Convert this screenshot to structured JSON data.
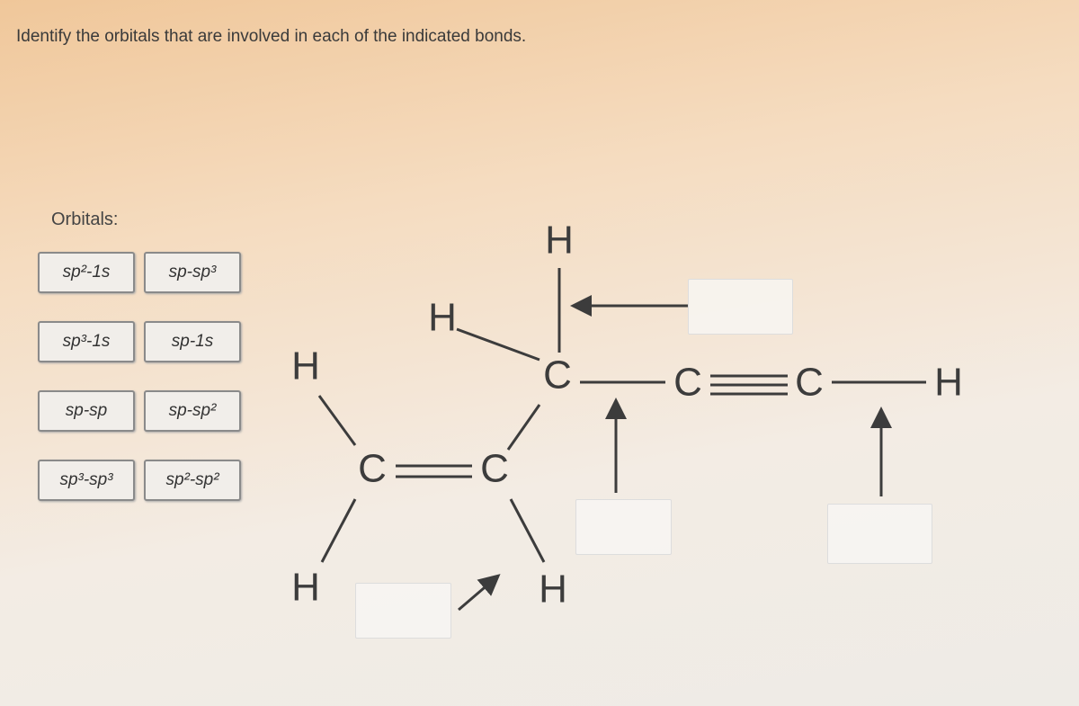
{
  "prompt": "Identify the orbitals that are involved in each of the indicated bonds.",
  "orbitals_label": "Orbitals:",
  "orbitals": [
    "sp²-1s",
    "sp-sp³",
    "sp³-1s",
    "sp-1s",
    "sp-sp",
    "sp-sp²",
    "sp³-sp³",
    "sp²-sp²"
  ],
  "atoms": [
    "H",
    "H",
    "C",
    "C",
    "C",
    "H",
    "H",
    "C",
    "C",
    "H",
    "H"
  ]
}
